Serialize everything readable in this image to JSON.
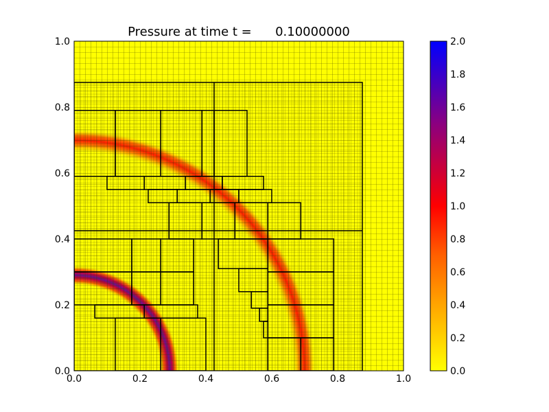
{
  "chart_data": {
    "type": "heatmap",
    "title": "Pressure at time t =      0.10000000",
    "xlabel": "",
    "ylabel": "",
    "xlim": [
      0.0,
      1.0
    ],
    "ylim": [
      0.0,
      1.0
    ],
    "x_ticks": [
      "0.0",
      "0.2",
      "0.4",
      "0.6",
      "0.8",
      "1.0"
    ],
    "y_ticks": [
      "0.0",
      "0.2",
      "0.4",
      "0.6",
      "0.8",
      "1.0"
    ],
    "colorbar": {
      "range": [
        0.0,
        2.0
      ],
      "ticks": [
        "0.0",
        "0.2",
        "0.4",
        "0.6",
        "0.8",
        "1.0",
        "1.2",
        "1.4",
        "1.6",
        "1.8",
        "2.0"
      ],
      "colormap": [
        "#ffff00",
        "#ffa500",
        "#ff6000",
        "#ff0000",
        "#8b0080",
        "#0000ff"
      ]
    },
    "background_value": 0.0,
    "pressure_rings": [
      {
        "center": [
          0.0,
          0.0
        ],
        "radius": 0.7,
        "peak": 0.9
      },
      {
        "center": [
          0.0,
          0.0
        ],
        "radius": 0.29,
        "peak": 1.35
      }
    ],
    "amr_levels": [
      {
        "level": 1,
        "x_range": [
          0.0,
          1.0
        ],
        "y_range": [
          0.0,
          1.0
        ]
      },
      {
        "level": 2,
        "x_range": [
          0.0,
          0.875
        ],
        "y_range": [
          0.0,
          0.875
        ]
      }
    ],
    "amr_patches": [
      [
        0.0,
        0.125,
        0.59,
        0.79
      ],
      [
        0.125,
        0.263,
        0.59,
        0.79
      ],
      [
        0.263,
        0.388,
        0.59,
        0.79
      ],
      [
        0.388,
        0.425,
        0.59,
        0.79
      ],
      [
        0.425,
        0.525,
        0.59,
        0.79
      ],
      [
        0.1,
        0.213,
        0.55,
        0.59
      ],
      [
        0.213,
        0.338,
        0.55,
        0.59
      ],
      [
        0.338,
        0.45,
        0.55,
        0.59
      ],
      [
        0.45,
        0.575,
        0.55,
        0.59
      ],
      [
        0.225,
        0.313,
        0.51,
        0.55
      ],
      [
        0.313,
        0.413,
        0.51,
        0.55
      ],
      [
        0.413,
        0.5,
        0.51,
        0.55
      ],
      [
        0.5,
        0.6,
        0.51,
        0.55
      ],
      [
        0.288,
        0.388,
        0.4,
        0.51
      ],
      [
        0.388,
        0.488,
        0.4,
        0.51
      ],
      [
        0.488,
        0.588,
        0.4,
        0.51
      ],
      [
        0.588,
        0.688,
        0.4,
        0.51
      ],
      [
        0.0,
        0.175,
        0.3,
        0.4
      ],
      [
        0.175,
        0.263,
        0.3,
        0.4
      ],
      [
        0.263,
        0.363,
        0.3,
        0.4
      ],
      [
        0.0,
        0.175,
        0.2,
        0.3
      ],
      [
        0.175,
        0.263,
        0.2,
        0.3
      ],
      [
        0.263,
        0.363,
        0.2,
        0.3
      ],
      [
        0.063,
        0.213,
        0.16,
        0.2
      ],
      [
        0.213,
        0.375,
        0.16,
        0.2
      ],
      [
        0.125,
        0.263,
        0.0,
        0.16
      ],
      [
        0.263,
        0.4,
        0.0,
        0.16
      ],
      [
        0.438,
        0.588,
        0.31,
        0.4
      ],
      [
        0.588,
        0.788,
        0.3,
        0.4
      ],
      [
        0.5,
        0.588,
        0.24,
        0.31
      ],
      [
        0.588,
        0.788,
        0.2,
        0.3
      ],
      [
        0.538,
        0.588,
        0.19,
        0.24
      ],
      [
        0.563,
        0.588,
        0.15,
        0.19
      ],
      [
        0.575,
        0.588,
        0.1,
        0.15
      ],
      [
        0.588,
        0.788,
        0.1,
        0.2
      ],
      [
        0.588,
        0.688,
        0.0,
        0.1
      ],
      [
        0.688,
        0.788,
        0.0,
        0.1
      ]
    ]
  }
}
